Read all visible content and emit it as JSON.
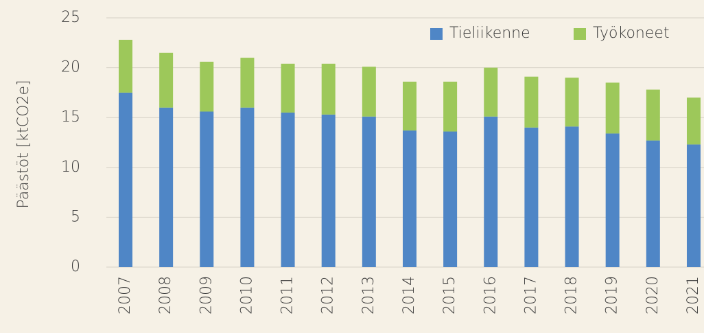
{
  "chart_data": {
    "type": "stacked_bar",
    "y_label": "Päästöt [ktCO2e]",
    "categories": [
      "2007",
      "2008",
      "2009",
      "2010",
      "2011",
      "2012",
      "2013",
      "2014",
      "2015",
      "2016",
      "2017",
      "2018",
      "2019",
      "2020",
      "2021"
    ],
    "series": [
      {
        "name": "Tieliikenne",
        "color": "#4f86c6",
        "values": [
          17.5,
          16.0,
          15.6,
          16.0,
          15.5,
          15.3,
          15.1,
          13.7,
          13.6,
          15.1,
          14.0,
          14.1,
          13.4,
          12.7,
          12.3
        ]
      },
      {
        "name": "Työkoneet",
        "color": "#9dc85a",
        "values": [
          5.3,
          5.5,
          5.0,
          5.0,
          4.9,
          5.1,
          5.0,
          4.9,
          5.0,
          4.9,
          5.1,
          4.9,
          5.1,
          5.1,
          4.7
        ]
      }
    ],
    "ylim": [
      0,
      25
    ],
    "yticks": [
      0,
      5,
      10,
      15,
      20,
      25
    ],
    "grid": true,
    "legend": "upper right"
  }
}
